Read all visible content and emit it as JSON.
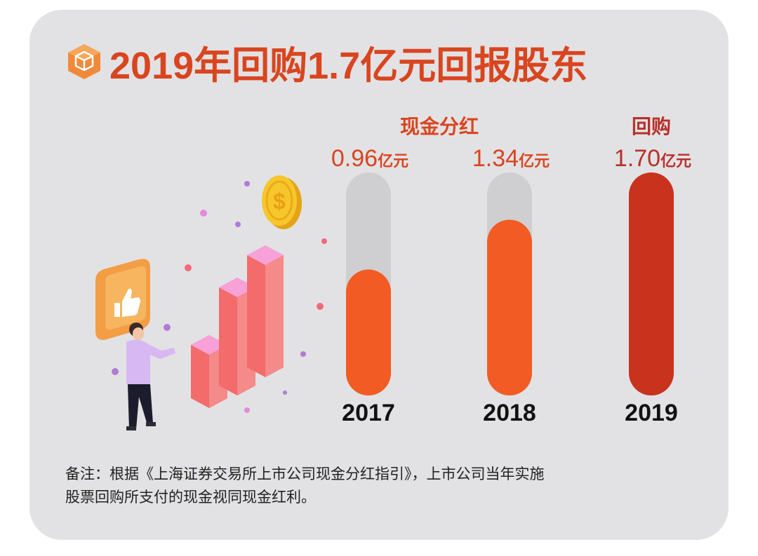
{
  "title": "2019年回购1.7亿元回报股东",
  "chart_data": {
    "type": "bar",
    "categories": [
      "2017",
      "2018",
      "2019"
    ],
    "values": [
      0.96,
      1.34,
      1.7
    ],
    "unit": "亿元",
    "value_labels": [
      "0.96",
      "1.34",
      "1.70"
    ],
    "group_labels": [
      {
        "text": "现金分红",
        "covers": [
          "2017",
          "2018"
        ]
      },
      {
        "text": "回购",
        "covers": [
          "2019"
        ]
      }
    ],
    "ylim": [
      0,
      1.7
    ],
    "bar_colors": [
      "#f25c24",
      "#f25c24",
      "#c9321c"
    ],
    "track_color": "#cfcfd1",
    "label_color": "#d9451f",
    "label_color_2019": "#b8302a"
  },
  "note": {
    "line1": "备注：根据《上海证券交易所上市公司现金分红指引》，上市公司当年实施",
    "line2": "股票回购所支付的现金视同现金红利。"
  },
  "colors": {
    "background": "#e2e2e4",
    "title": "#d9451f"
  }
}
